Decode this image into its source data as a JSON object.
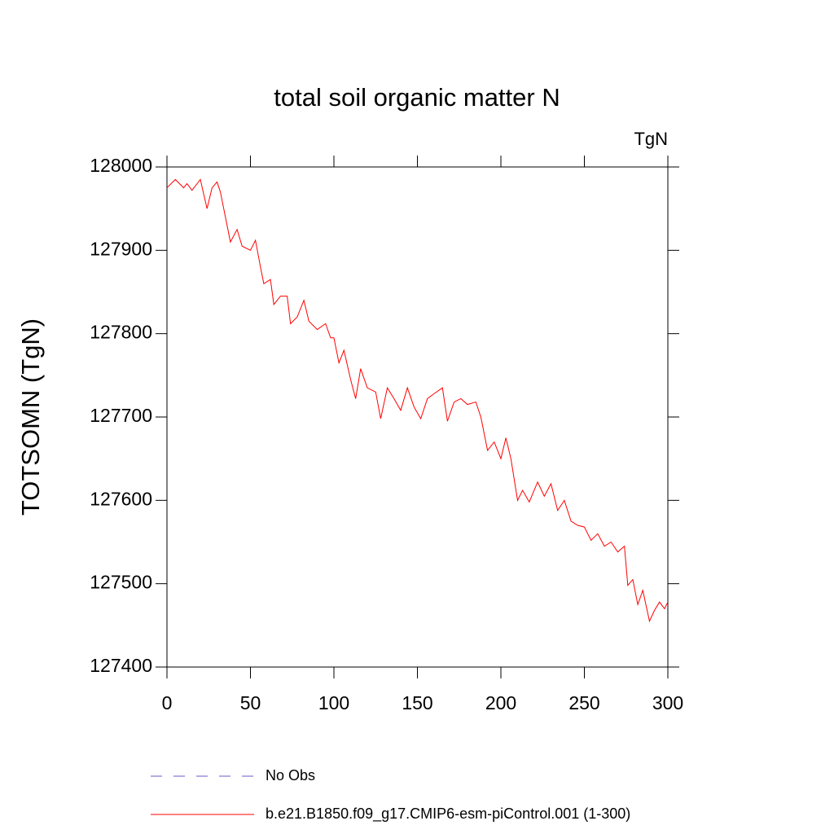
{
  "chart_data": {
    "type": "line",
    "title": "total soil organic matter N",
    "units_label": "TgN",
    "y_label": "TOTSOMN  (TgN)",
    "xlim": [
      0,
      300
    ],
    "xticks": [
      0,
      50,
      100,
      150,
      200,
      250,
      300
    ],
    "ylim": [
      127400,
      128000
    ],
    "yticks": [
      127400,
      127500,
      127600,
      127700,
      127800,
      127900,
      128000
    ],
    "reference": {
      "name": "No Obs",
      "color": "#6a5acd",
      "dash": true
    },
    "series": [
      {
        "name": "b.e21.B1850.f09_g17.CMIP6-esm-piControl.001 (1-300)",
        "color": "#ff0000",
        "x": [
          0,
          5,
          10,
          12,
          15,
          20,
          24,
          27,
          30,
          32,
          35,
          38,
          42,
          45,
          50,
          53,
          56,
          58,
          62,
          64,
          68,
          72,
          74,
          78,
          82,
          85,
          90,
          95,
          98,
          100,
          103,
          106,
          110,
          113,
          116,
          120,
          125,
          128,
          132,
          136,
          140,
          144,
          148,
          152,
          156,
          160,
          165,
          168,
          172,
          176,
          180,
          185,
          188,
          192,
          196,
          200,
          203,
          206,
          210,
          213,
          217,
          222,
          226,
          230,
          234,
          238,
          242,
          246,
          250,
          254,
          258,
          262,
          266,
          270,
          274,
          276,
          279,
          282,
          285,
          289,
          292,
          295,
          298,
          300
        ],
        "values": [
          127975,
          127985,
          127975,
          127980,
          127972,
          127985,
          127950,
          127975,
          127982,
          127970,
          127940,
          127910,
          127925,
          127905,
          127900,
          127912,
          127880,
          127860,
          127865,
          127835,
          127845,
          127845,
          127812,
          127820,
          127840,
          127815,
          127805,
          127812,
          127795,
          127795,
          127765,
          127780,
          127745,
          127722,
          127758,
          127735,
          127730,
          127698,
          127735,
          127722,
          127708,
          127735,
          127712,
          127698,
          127722,
          127728,
          127735,
          127695,
          127718,
          127722,
          127715,
          127718,
          127700,
          127660,
          127670,
          127650,
          127675,
          127650,
          127600,
          127612,
          127598,
          127622,
          127605,
          127620,
          127588,
          127600,
          127575,
          127570,
          127568,
          127552,
          127560,
          127545,
          127550,
          127538,
          127545,
          127498,
          127505,
          127475,
          127492,
          127455,
          127468,
          127478,
          127470,
          127478
        ]
      }
    ]
  }
}
